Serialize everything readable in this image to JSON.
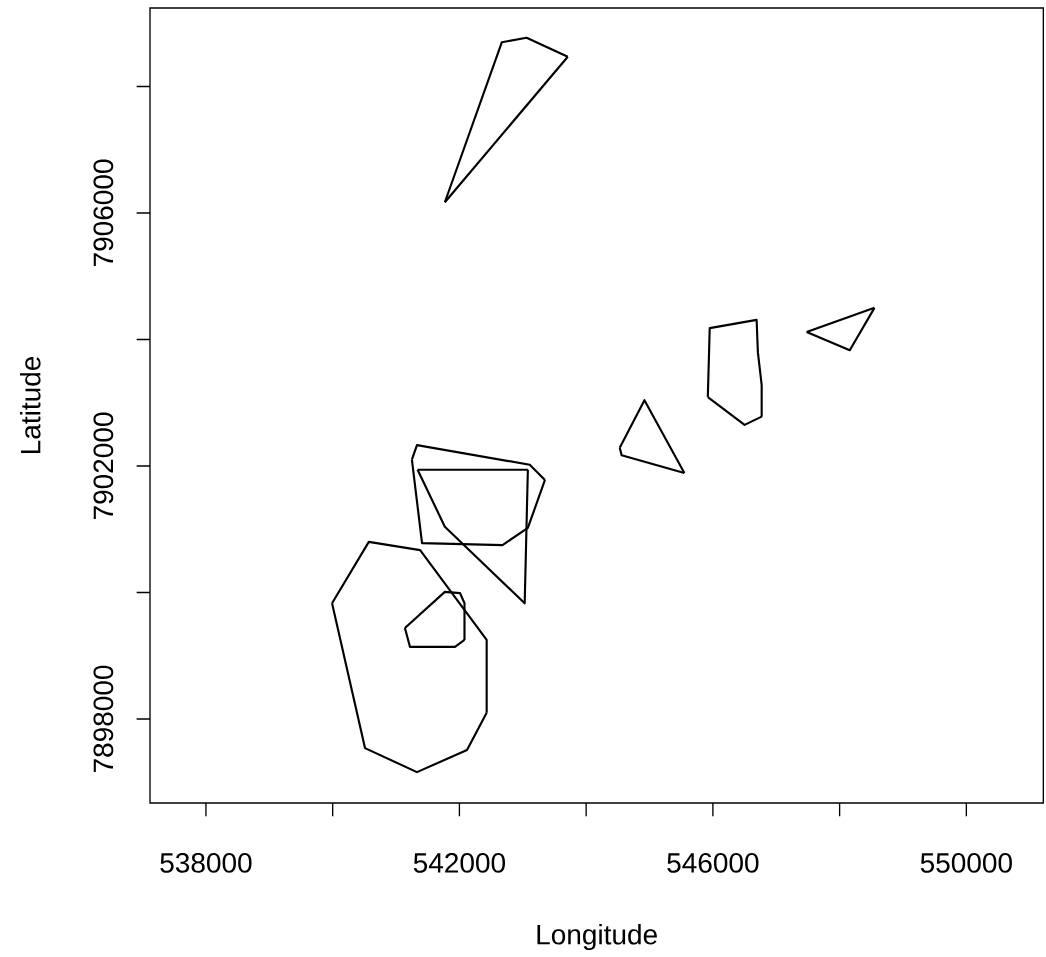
{
  "chart_data": {
    "type": "line",
    "xlabel": "Longitude",
    "ylabel": "Latitude",
    "xlim": [
      537117,
      551215
    ],
    "ylim": [
      7896672,
      7909241
    ],
    "xticks": [
      538000,
      {
        "value": 540000,
        "label": null
      },
      542000,
      {
        "value": 544000,
        "label": null
      },
      546000,
      {
        "value": 548000,
        "label": null
      },
      550000
    ],
    "yticks": [
      7898000,
      {
        "value": 7900000,
        "label": null
      },
      7902000,
      {
        "value": 7904000,
        "label": null
      },
      7906000,
      {
        "value": 7908000,
        "label": null
      }
    ],
    "marker": "none",
    "line_style": "solid",
    "series": [
      {
        "color": "#000000",
        "x": [
          539990,
          540570,
          541380,
          542430,
          542430
        ],
        "values": [
          7899830,
          7900800,
          7900670,
          7899250,
          7898100
        ]
      },
      {
        "color": "#000000",
        "x": [
          539990,
          540510,
          541330,
          542120,
          542430
        ],
        "values": [
          7899830,
          7897540,
          7897160,
          7897510,
          7898100
        ]
      },
      {
        "color": "#000000",
        "x": [
          541140,
          541770,
          542010,
          542080,
          542080
        ],
        "values": [
          7899440,
          7900010,
          7899990,
          7899830,
          7899250
        ]
      },
      {
        "color": "#000000",
        "x": [
          541140,
          541220,
          541930,
          542080
        ],
        "values": [
          7899440,
          7899140,
          7899140,
          7899250
        ]
      },
      {
        "color": "#000000",
        "x": [
          541250,
          541330,
          543110,
          543350
        ],
        "values": [
          7902100,
          7902330,
          7902020,
          7901780
        ]
      },
      {
        "color": "#000000",
        "x": [
          541250,
          541410,
          542680,
          543080,
          543350
        ],
        "values": [
          7902100,
          7900780,
          7900750,
          7901020,
          7901780
        ]
      },
      {
        "color": "#000000",
        "x": [
          541340,
          543080
        ],
        "values": [
          7901940,
          7901940
        ]
      },
      {
        "color": "#000000",
        "x": [
          541340,
          541770,
          543030,
          543080
        ],
        "values": [
          7901940,
          7901040,
          7899830,
          7901940
        ]
      },
      {
        "color": "#000000",
        "x": [
          544530,
          544920,
          545550
        ],
        "values": [
          7902290,
          7903040,
          7901890
        ]
      },
      {
        "color": "#000000",
        "x": [
          544530,
          544560,
          545550
        ],
        "values": [
          7902290,
          7902170,
          7901890
        ]
      },
      {
        "color": "#000000",
        "x": [
          545920,
          545950,
          546690,
          546710,
          546770,
          546770
        ],
        "values": [
          7903090,
          7904180,
          7904310,
          7903800,
          7903280,
          7902780
        ]
      },
      {
        "color": "#000000",
        "x": [
          545920,
          546500,
          546770
        ],
        "values": [
          7903090,
          7902650,
          7902780
        ]
      },
      {
        "color": "#000000",
        "x": [
          547480,
          548550
        ],
        "values": [
          7904120,
          7904500
        ]
      },
      {
        "color": "#000000",
        "x": [
          547480,
          548160,
          548550
        ],
        "values": [
          7904120,
          7903830,
          7904500
        ]
      },
      {
        "color": "#000000",
        "x": [
          541770,
          542670,
          543060,
          543710
        ],
        "values": [
          7906170,
          7908700,
          7908770,
          7908470
        ]
      },
      {
        "color": "#000000",
        "x": [
          541770,
          543710
        ],
        "values": [
          7906170,
          7908470
        ]
      }
    ]
  }
}
